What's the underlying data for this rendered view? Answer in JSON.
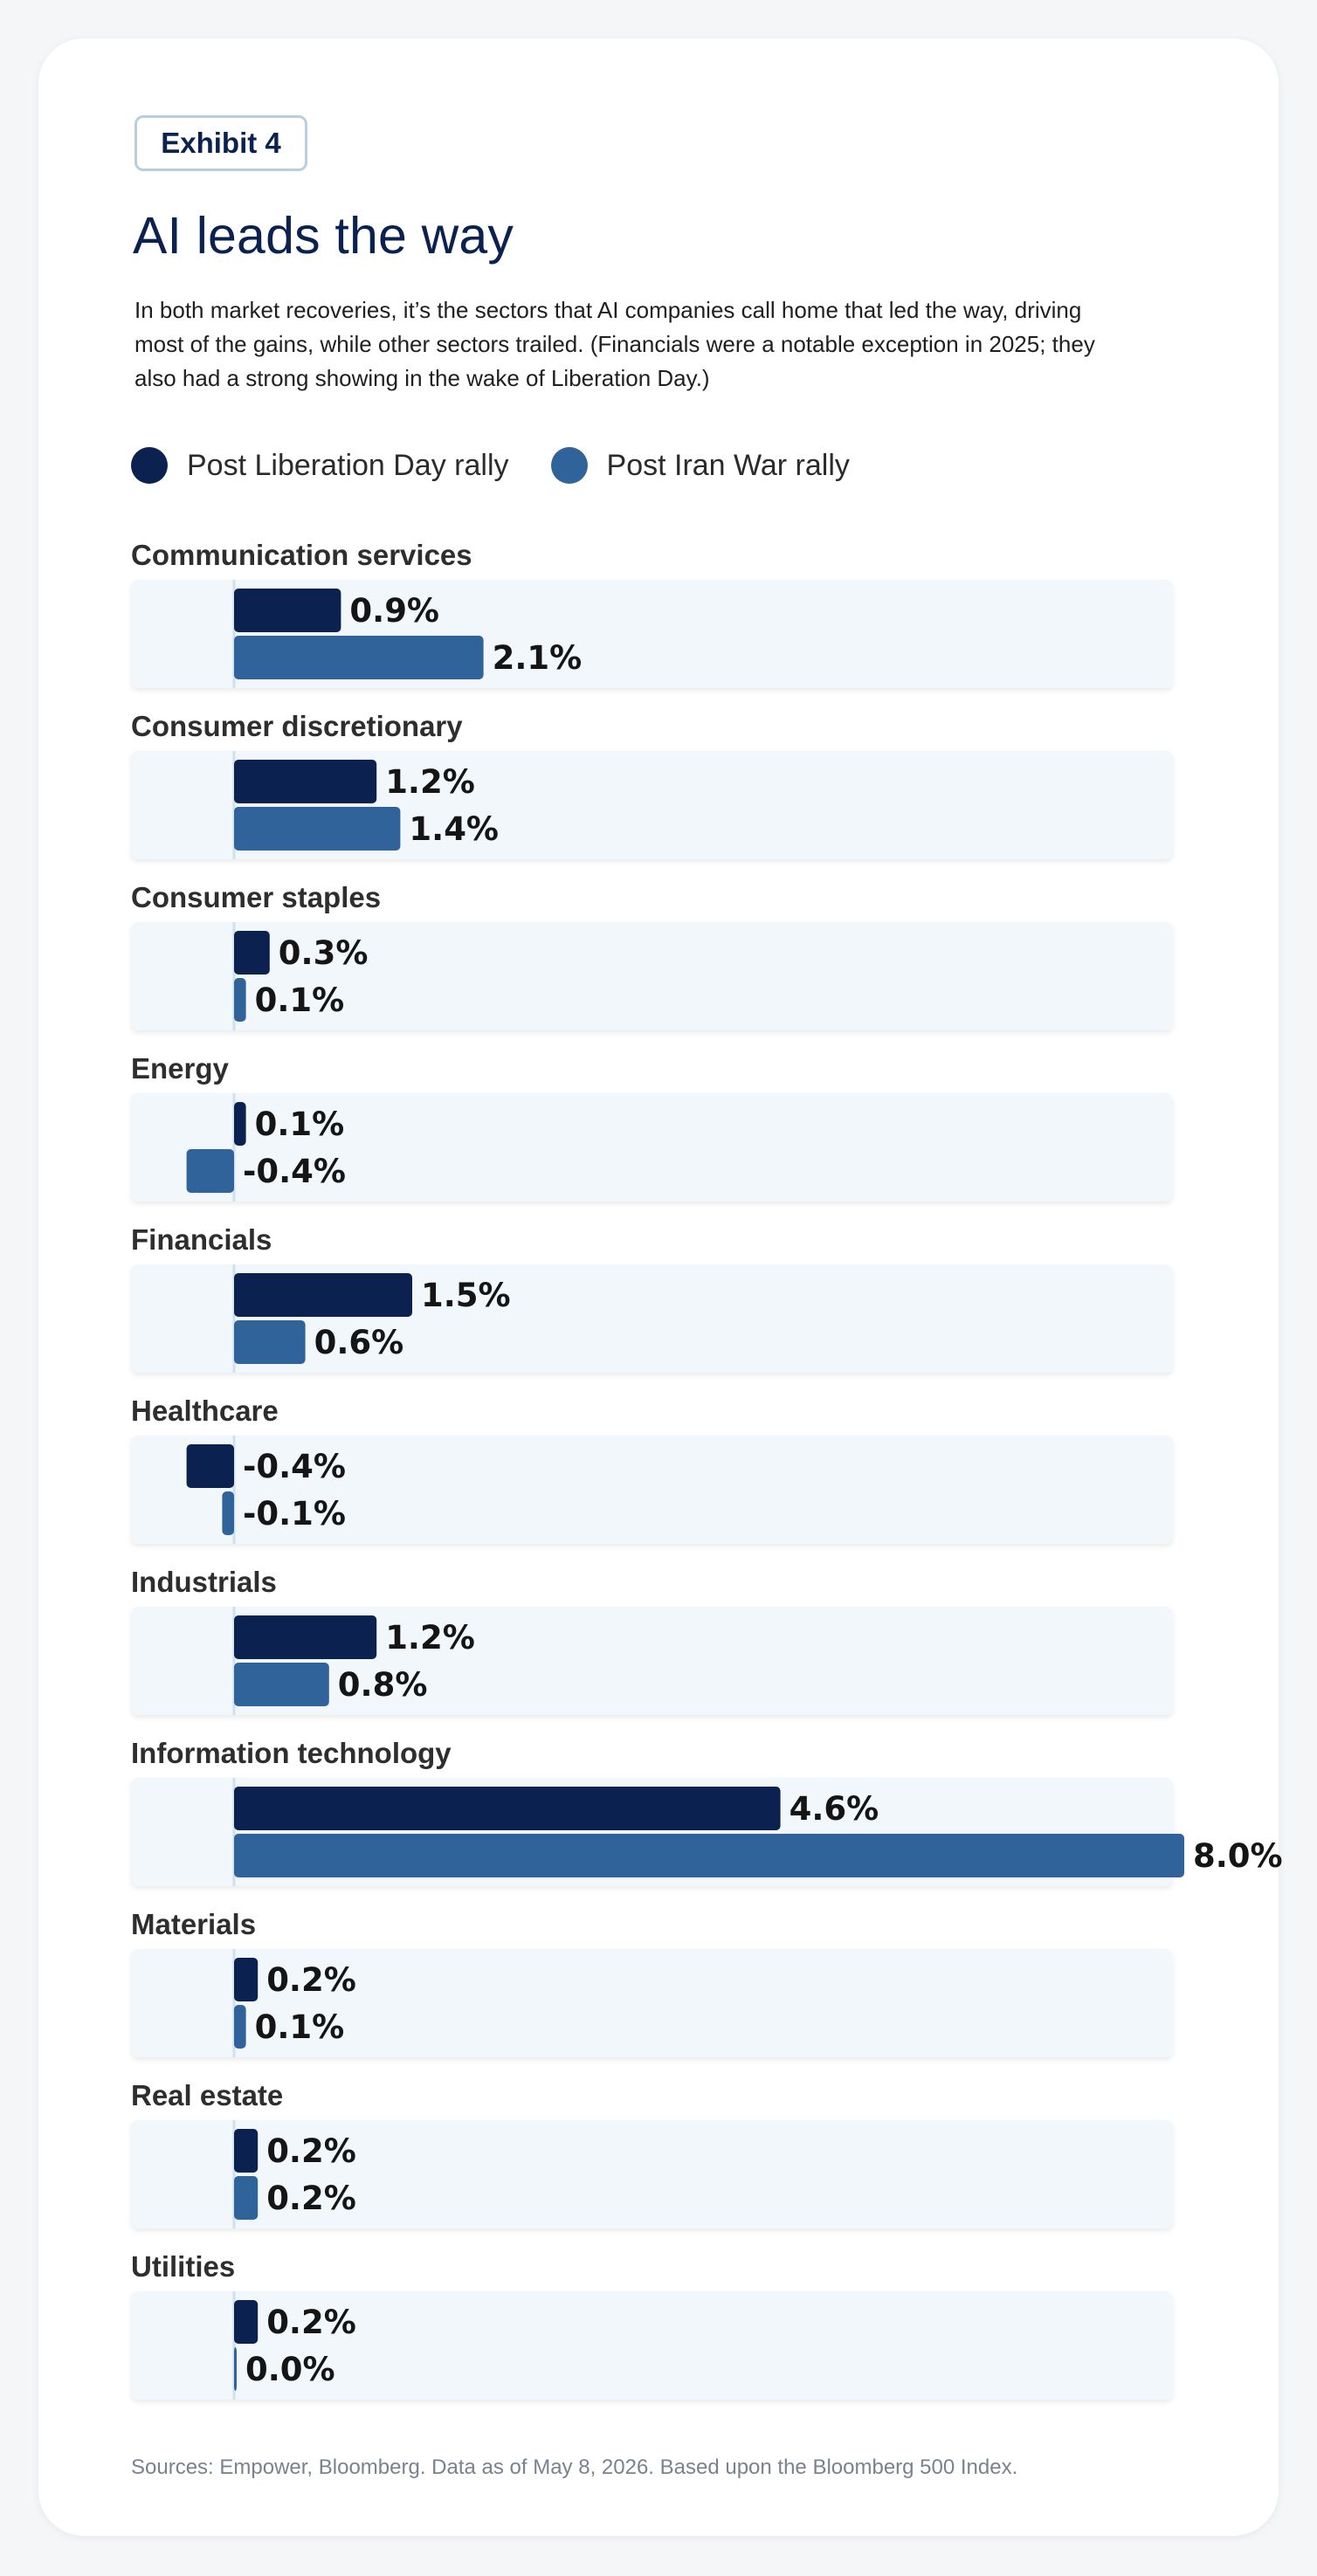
{
  "exhibit_label": "Exhibit 4",
  "title": "AI leads the way",
  "subtitle": "In both market recoveries, it’s the sectors that AI companies call home that led the way, driving most of the gains, while other sectors trailed. (Financials were a notable exception in 2025; they also had a strong showing in the wake of Liberation Day.)",
  "legend": [
    {
      "label": "Post Liberation Day rally",
      "color": "#0b2150"
    },
    {
      "label": "Post Iran War rally",
      "color": "#2f6399"
    }
  ],
  "footnote": "Sources: Empower, Bloomberg. Data as of May 8, 2026. Based upon the Bloomberg 500 Index.",
  "chart_data": {
    "type": "bar",
    "orientation": "horizontal",
    "title": "AI leads the way",
    "value_unit": "%",
    "categories": [
      "Communication services",
      "Consumer discretionary",
      "Consumer staples",
      "Energy",
      "Financials",
      "Healthcare",
      "Industrials",
      "Information technology",
      "Materials",
      "Real estate",
      "Utilities"
    ],
    "series": [
      {
        "name": "Post Liberation Day rally",
        "color": "#0b2150",
        "values": [
          0.9,
          1.2,
          0.3,
          0.1,
          1.5,
          -0.4,
          1.2,
          4.6,
          0.2,
          0.2,
          0.2
        ]
      },
      {
        "name": "Post Iran War rally",
        "color": "#2f6399",
        "values": [
          2.1,
          1.4,
          0.1,
          -0.4,
          0.6,
          -0.1,
          0.8,
          8.0,
          0.1,
          0.2,
          0.0
        ]
      }
    ],
    "value_labels": [
      [
        "0.9%",
        "1.2%",
        "0.3%",
        "0.1%",
        "1.5%",
        "-0.4%",
        "1.2%",
        "4.6%",
        "0.2%",
        "0.2%",
        "0.2%"
      ],
      [
        "2.1%",
        "1.4%",
        "0.1%",
        "-0.4%",
        "0.6%",
        "-0.1%",
        "0.8%",
        "8.0%",
        "0.1%",
        "0.2%",
        "0.0%"
      ]
    ],
    "xlim": [
      -1.1,
      8.0
    ],
    "grid": false,
    "legend_position": "top-left"
  }
}
